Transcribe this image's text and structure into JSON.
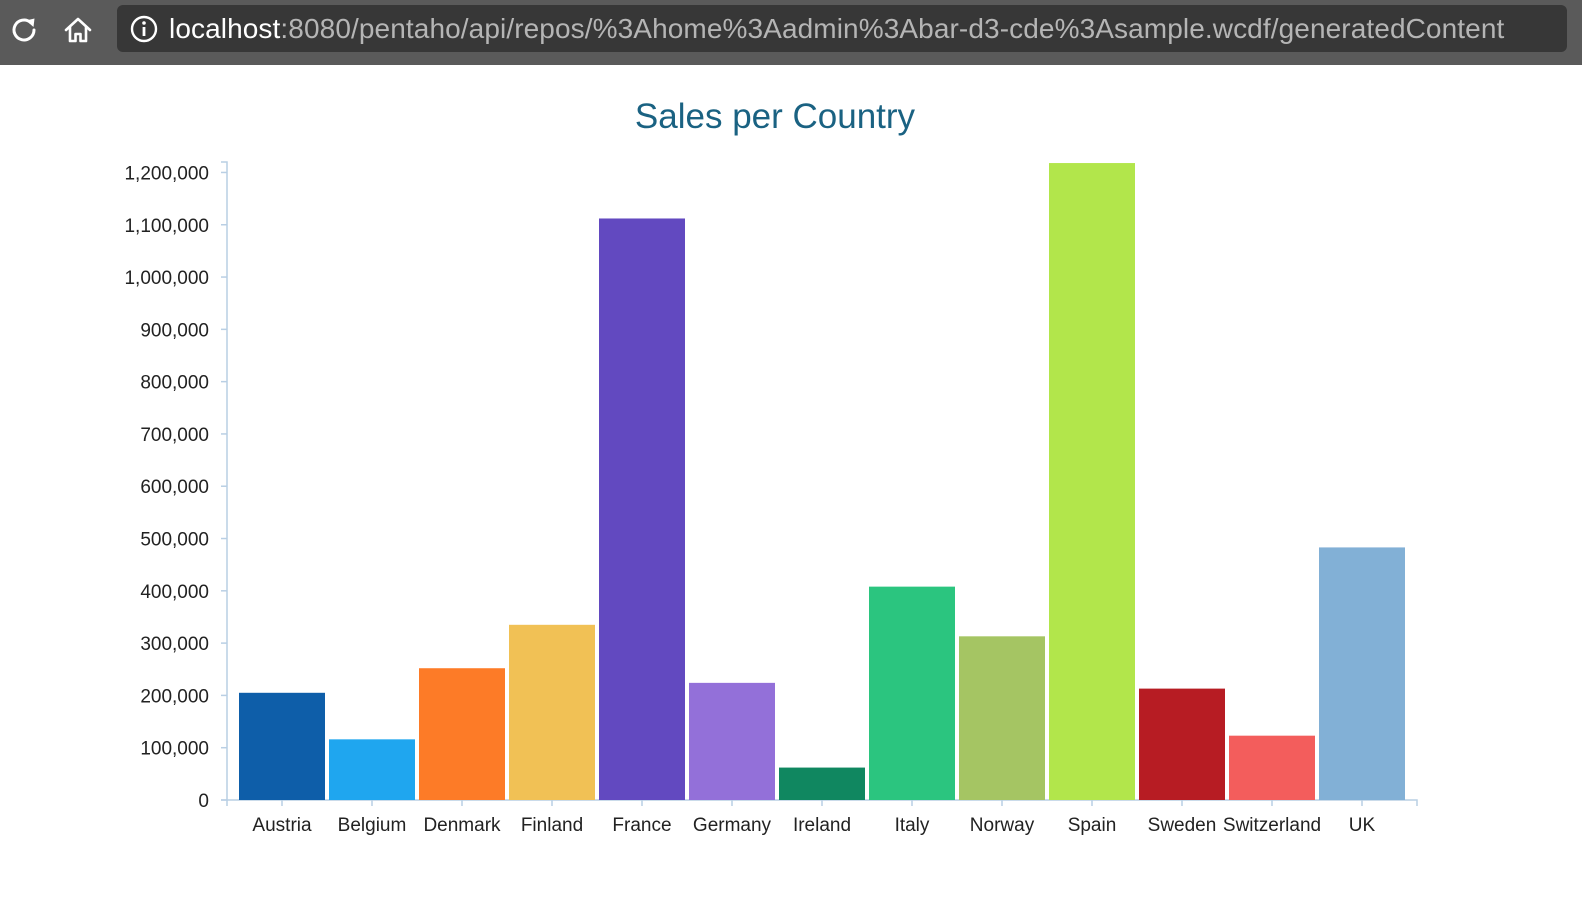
{
  "browser": {
    "url_host": "localhost",
    "url_rest": ":8080/pentaho/api/repos/%3Ahome%3Aadmin%3Abar-d3-cde%3Asample.wcdf/generatedContent",
    "icons": {
      "reload": "reload-icon",
      "home": "home-icon",
      "info": "info-icon"
    }
  },
  "chart_data": {
    "type": "bar",
    "title": "Sales per Country",
    "xlabel": "",
    "ylabel": "",
    "categories": [
      "Austria",
      "Belgium",
      "Denmark",
      "Finland",
      "France",
      "Germany",
      "Ireland",
      "Italy",
      "Norway",
      "Spain",
      "Sweden",
      "Switzerland",
      "UK"
    ],
    "values": [
      205000,
      116000,
      252000,
      335000,
      1112000,
      224000,
      62000,
      408000,
      313000,
      1218000,
      213000,
      123000,
      483000
    ],
    "colors": [
      "#0e5ea9",
      "#1fa6ef",
      "#fd7b27",
      "#f1c155",
      "#6249c0",
      "#9370d9",
      "#108760",
      "#2bc57f",
      "#a5c563",
      "#b2e64b",
      "#b71c23",
      "#f35d5c",
      "#82b0d6"
    ],
    "ylim": [
      0,
      1220000
    ],
    "yticks": [
      0,
      100000,
      200000,
      300000,
      400000,
      500000,
      600000,
      700000,
      800000,
      900000,
      1000000,
      1100000,
      1200000
    ],
    "ytick_labels": [
      "0",
      "100,000",
      "200,000",
      "300,000",
      "400,000",
      "500,000",
      "600,000",
      "700,000",
      "800,000",
      "900,000",
      "1,000,000",
      "1,100,000",
      "1,200,000"
    ],
    "grid": false,
    "legend": "none"
  }
}
